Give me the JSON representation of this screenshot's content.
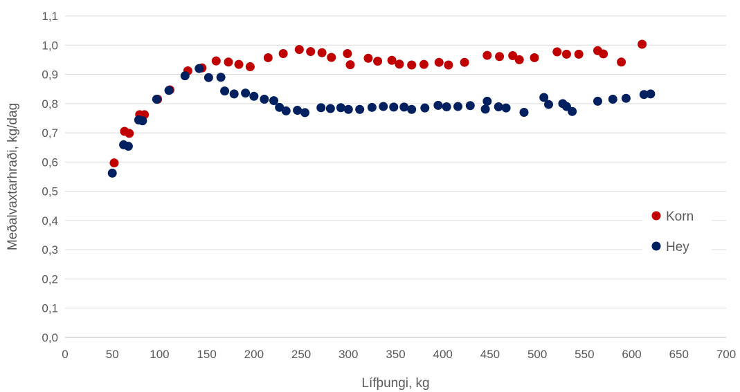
{
  "chart_data": {
    "type": "scatter",
    "title": "",
    "xlabel": "Lífþungi, kg",
    "ylabel": "Meðalvaxtarhraði, kg/dag",
    "xlim": [
      0,
      700
    ],
    "ylim": [
      0,
      1.1
    ],
    "x_ticks": [
      0,
      50,
      100,
      150,
      200,
      250,
      300,
      350,
      400,
      450,
      500,
      550,
      600,
      650,
      700
    ],
    "y_ticks": [
      0,
      0.1,
      0.2,
      0.3,
      0.4,
      0.5,
      0.6,
      0.7,
      0.8,
      0.9,
      1.0,
      1.1
    ],
    "x_tick_labels": [
      "0",
      "50",
      "100",
      "150",
      "200",
      "250",
      "300",
      "350",
      "400",
      "450",
      "500",
      "550",
      "600",
      "650",
      "700"
    ],
    "y_tick_labels": [
      "0,0",
      "0,1",
      "0,2",
      "0,3",
      "0,4",
      "0,5",
      "0,6",
      "0,7",
      "0,8",
      "0,9",
      "1,0",
      "1,1"
    ],
    "grid": "horizontal",
    "legend_position": "right",
    "series": [
      {
        "name": "Korn",
        "color": "#c00000",
        "points": [
          [
            52,
            0.597
          ],
          [
            63,
            0.705
          ],
          [
            68,
            0.698
          ],
          [
            79,
            0.762
          ],
          [
            84,
            0.762
          ],
          [
            98,
            0.815
          ],
          [
            111,
            0.847
          ],
          [
            130,
            0.912
          ],
          [
            145,
            0.922
          ],
          [
            160,
            0.946
          ],
          [
            173,
            0.942
          ],
          [
            184,
            0.934
          ],
          [
            196,
            0.926
          ],
          [
            215,
            0.957
          ],
          [
            231,
            0.971
          ],
          [
            248,
            0.985
          ],
          [
            260,
            0.978
          ],
          [
            272,
            0.974
          ],
          [
            282,
            0.958
          ],
          [
            299,
            0.971
          ],
          [
            302,
            0.933
          ],
          [
            321,
            0.955
          ],
          [
            331,
            0.945
          ],
          [
            346,
            0.948
          ],
          [
            354,
            0.935
          ],
          [
            367,
            0.932
          ],
          [
            380,
            0.934
          ],
          [
            396,
            0.941
          ],
          [
            406,
            0.932
          ],
          [
            423,
            0.941
          ],
          [
            447,
            0.965
          ],
          [
            460,
            0.961
          ],
          [
            474,
            0.964
          ],
          [
            481,
            0.95
          ],
          [
            497,
            0.957
          ],
          [
            521,
            0.977
          ],
          [
            531,
            0.969
          ],
          [
            544,
            0.969
          ],
          [
            564,
            0.981
          ],
          [
            570,
            0.97
          ],
          [
            589,
            0.942
          ],
          [
            611,
            1.003
          ]
        ]
      },
      {
        "name": "Hey",
        "color": "#002060",
        "points": [
          [
            50,
            0.562
          ],
          [
            62,
            0.659
          ],
          [
            67,
            0.654
          ],
          [
            78,
            0.744
          ],
          [
            82,
            0.741
          ],
          [
            97,
            0.815
          ],
          [
            110,
            0.845
          ],
          [
            127,
            0.895
          ],
          [
            142,
            0.92
          ],
          [
            152,
            0.889
          ],
          [
            165,
            0.89
          ],
          [
            169,
            0.843
          ],
          [
            179,
            0.833
          ],
          [
            191,
            0.836
          ],
          [
            200,
            0.825
          ],
          [
            211,
            0.815
          ],
          [
            221,
            0.81
          ],
          [
            227,
            0.787
          ],
          [
            234,
            0.775
          ],
          [
            246,
            0.777
          ],
          [
            254,
            0.769
          ],
          [
            271,
            0.786
          ],
          [
            281,
            0.783
          ],
          [
            292,
            0.786
          ],
          [
            300,
            0.78
          ],
          [
            312,
            0.78
          ],
          [
            325,
            0.787
          ],
          [
            337,
            0.79
          ],
          [
            348,
            0.788
          ],
          [
            359,
            0.788
          ],
          [
            367,
            0.78
          ],
          [
            381,
            0.785
          ],
          [
            395,
            0.794
          ],
          [
            404,
            0.789
          ],
          [
            416,
            0.79
          ],
          [
            429,
            0.793
          ],
          [
            445,
            0.781
          ],
          [
            447,
            0.808
          ],
          [
            459,
            0.789
          ],
          [
            467,
            0.785
          ],
          [
            486,
            0.77
          ],
          [
            507,
            0.821
          ],
          [
            512,
            0.797
          ],
          [
            527,
            0.8
          ],
          [
            531,
            0.79
          ],
          [
            537,
            0.773
          ],
          [
            564,
            0.808
          ],
          [
            580,
            0.815
          ],
          [
            594,
            0.818
          ],
          [
            613,
            0.831
          ],
          [
            620,
            0.833
          ]
        ]
      }
    ]
  }
}
